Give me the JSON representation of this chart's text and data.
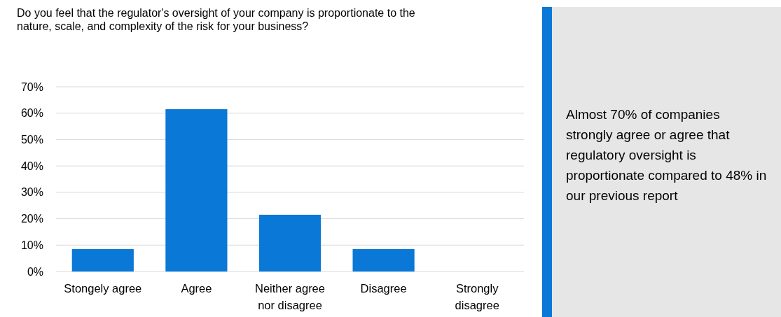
{
  "chart_data": {
    "type": "bar",
    "title": "Do you feel that the regulator's oversight of your company is proportionate to the nature, scale, and complexity of the risk for your business?",
    "categories": [
      "Stongely agree",
      "Agree",
      "Neither agree nor disagree",
      "Disagree",
      "Strongly disagree"
    ],
    "values": [
      8.5,
      61.5,
      21.5,
      8.5,
      0
    ],
    "color": "#0a78d7",
    "ylim": [
      0,
      70
    ],
    "yticks": [
      {
        "value": 0,
        "label": "0%"
      },
      {
        "value": 10,
        "label": "10%"
      },
      {
        "value": 20,
        "label": "20%"
      },
      {
        "value": 30,
        "label": "30%"
      },
      {
        "value": 40,
        "label": "40%"
      },
      {
        "value": 50,
        "label": "50%"
      },
      {
        "value": 60,
        "label": "60%"
      },
      {
        "value": 70,
        "label": "70%"
      }
    ],
    "grid": "y",
    "annotations": [
      "Almost 70% of companies strongly agree or agree that regulatory oversight is proportionate compared to 48% in our previous report"
    ]
  }
}
